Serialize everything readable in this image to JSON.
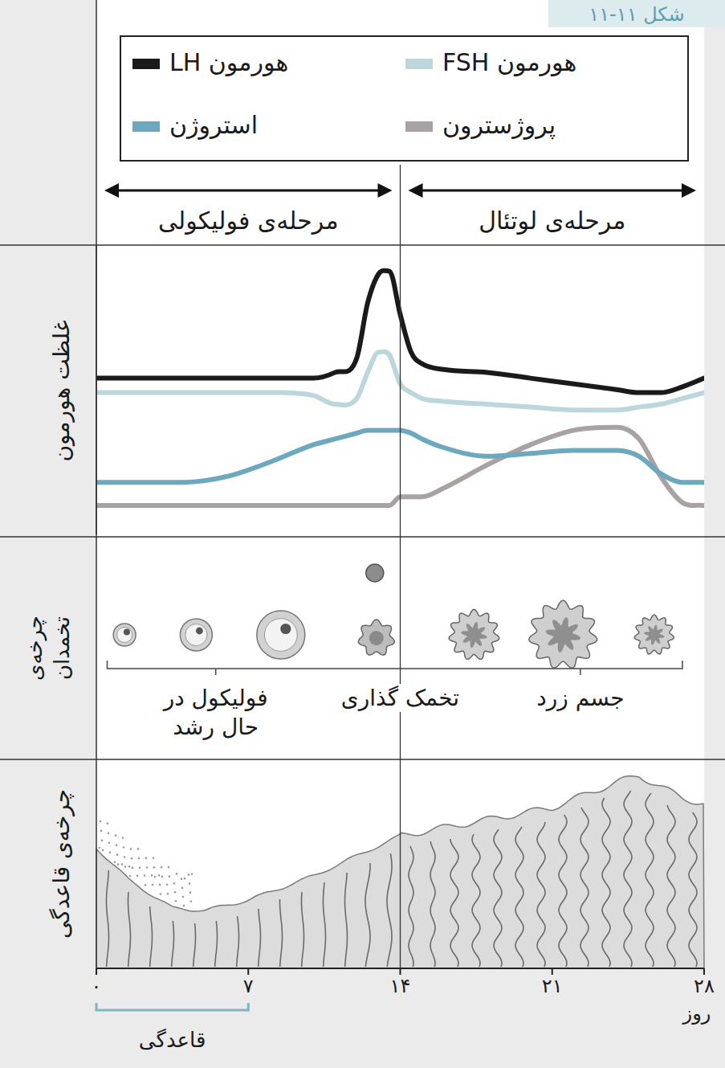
{
  "figure_label": "شکل ۱۱-۱۱",
  "phases": [
    {
      "label": "مرحله‌ی فولیکولی",
      "start": 0,
      "end": 14
    },
    {
      "label": "مرحله‌ی لوتئال",
      "start": 14,
      "end": 28
    }
  ],
  "chart_data": {
    "type": "line",
    "y_label": "غلظت هورمون",
    "x_label": "روز",
    "x": [
      0,
      2,
      4,
      6,
      8,
      10,
      11,
      12,
      12.5,
      13,
      13.5,
      14,
      14.5,
      15,
      16,
      18,
      20,
      22,
      24,
      25,
      26,
      27,
      28
    ],
    "xlim": [
      0,
      28
    ],
    "xticks": [
      {
        "value": 0,
        "label": "۰"
      },
      {
        "value": 7,
        "label": "۷"
      },
      {
        "value": 14,
        "label": "۱۴"
      },
      {
        "value": 21,
        "label": "۲۱"
      },
      {
        "value": 28,
        "label": "۲۸"
      }
    ],
    "ylim": [
      0,
      100
    ],
    "tick_labels": "x",
    "grid": false,
    "legend": "top",
    "series": [
      {
        "name": "هورمون LH",
        "color": "#1a1a1a",
        "values": [
          54,
          54,
          54,
          54,
          54,
          54,
          56,
          61,
          80,
          90,
          91,
          76,
          63,
          59,
          57,
          56,
          54,
          52,
          50,
          49,
          49,
          51,
          54
        ]
      },
      {
        "name": "هورمون FSH",
        "color": "#bcd7dc",
        "values": [
          49,
          49,
          49,
          49,
          49,
          48,
          45,
          47,
          56,
          63,
          62,
          52,
          49,
          47,
          46,
          45,
          44,
          43,
          43,
          44,
          45,
          47,
          49
        ]
      },
      {
        "name": "استروژن",
        "color": "#6ea8bf",
        "values": [
          18,
          18,
          18,
          20,
          25,
          31,
          33,
          35,
          36,
          36,
          36,
          36,
          35,
          33,
          30,
          27,
          28,
          29,
          29,
          27,
          21,
          18,
          18
        ]
      },
      {
        "name": "پروژسترون",
        "color": "#a8a2a2",
        "values": [
          10,
          10,
          10,
          10,
          10,
          10,
          10,
          10,
          10,
          10,
          10,
          13,
          13,
          13,
          16,
          24,
          31,
          36,
          37,
          33,
          20,
          11,
          10
        ]
      }
    ]
  },
  "ovarian_cycle": {
    "title": "چرخه‌ی تخمدان",
    "labels": [
      "فولیکول در حال رشد",
      "تخمک گذاری",
      "جسم زرد"
    ]
  },
  "uterine_cycle": {
    "title": "چرخه‌ی قاعدگی"
  },
  "menstruation": {
    "label": "قاعدگی",
    "start": 0,
    "end": 7
  }
}
